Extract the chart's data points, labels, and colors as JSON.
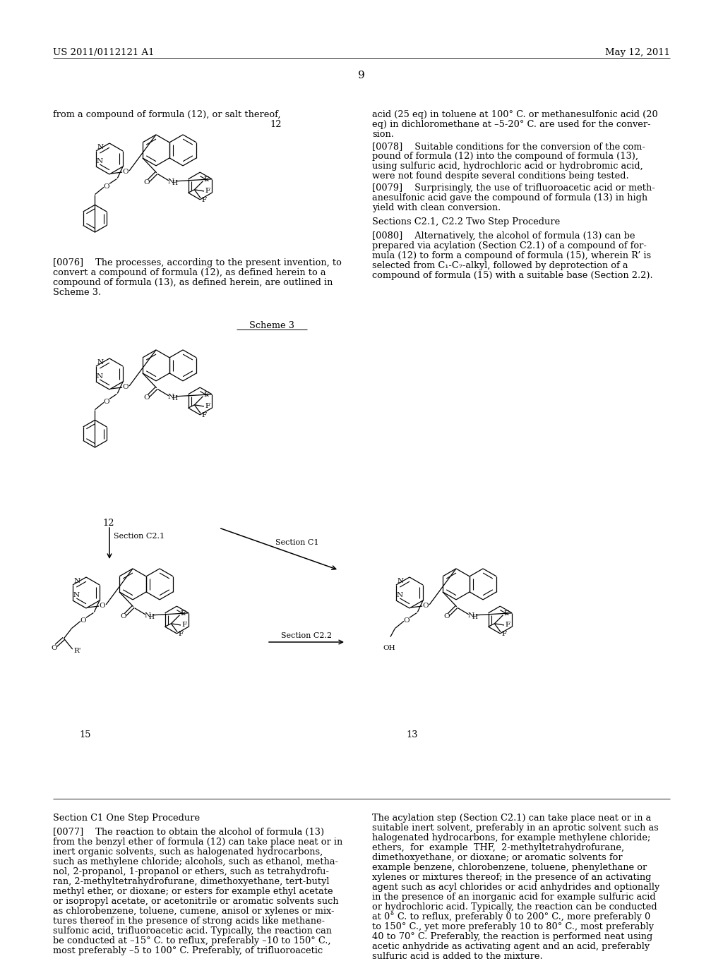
{
  "background": "#ffffff",
  "header_left": "US 2011/0112121 A1",
  "header_right": "May 12, 2011",
  "page_number": "9",
  "scheme_label": "Scheme 3",
  "label_12": "12",
  "label_15": "15",
  "label_13": "13",
  "section_c21": "Section C2.1",
  "section_c1": "Section C1",
  "section_c22": "Section C2.2",
  "left_texts": [
    [
      75,
      156,
      "from a compound of formula (12), or salt thereof,"
    ],
    [
      75,
      366,
      "[0076]  The processes, according to the present invention, to"
    ],
    [
      75,
      380,
      "convert a compound of formula (12), as defined herein to a"
    ],
    [
      75,
      394,
      "compound of formula (13), as defined herein, are outlined in"
    ],
    [
      75,
      408,
      "Scheme 3."
    ]
  ],
  "right_texts": [
    [
      527,
      156,
      "acid (25 eq) in toluene at 100° C. or methanesulfonic acid (20"
    ],
    [
      527,
      170,
      "eq) in dichloromethane at –5-20° C. are used for the conver-"
    ],
    [
      527,
      184,
      "sion."
    ],
    [
      527,
      201,
      "[0078]  Suitable conditions for the conversion of the com-"
    ],
    [
      527,
      215,
      "pound of formula (12) into the compound of formula (13),"
    ],
    [
      527,
      229,
      "using sulfuric acid, hydrochloric acid or hydrobromic acid,"
    ],
    [
      527,
      243,
      "were not found despite several conditions being tested."
    ],
    [
      527,
      260,
      "[0079]  Surprisingly, the use of trifluoroacetic acid or meth-"
    ],
    [
      527,
      274,
      "anesulfonic acid gave the compound of formula (13) in high"
    ],
    [
      527,
      288,
      "yield with clean conversion."
    ],
    [
      527,
      308,
      "Sections C2.1, C2.2 Two Step Procedure"
    ],
    [
      527,
      328,
      "[0080]  Alternatively, the alcohol of formula (13) can be"
    ],
    [
      527,
      342,
      "prepared via acylation (Section C2.1) of a compound of for-"
    ],
    [
      527,
      356,
      "mula (12) to form a compound of formula (15), wherein R’ is"
    ],
    [
      527,
      370,
      "selected from C₁-C₇-alkyl, followed by deprotection of a"
    ],
    [
      527,
      384,
      "compound of formula (15) with a suitable base (Section 2.2)."
    ]
  ],
  "bottom_left_texts": [
    [
      75,
      1153,
      "Section C1 One Step Procedure"
    ],
    [
      75,
      1173,
      "[0077]  The reaction to obtain the alcohol of formula (13)"
    ],
    [
      75,
      1187,
      "from the benzyl ether of formula (12) can take place neat or in"
    ],
    [
      75,
      1201,
      "inert organic solvents, such as halogenated hydrocarbons,"
    ],
    [
      75,
      1215,
      "such as methylene chloride; alcohols, such as ethanol, metha-"
    ],
    [
      75,
      1229,
      "nol, 2-propanol, 1-propanol or ethers, such as tetrahydrofu-"
    ],
    [
      75,
      1243,
      "ran, 2-methyltetrahydrofurane, dimethoxyethane, tert-butyl"
    ],
    [
      75,
      1257,
      "methyl ether, or dioxane; or esters for example ethyl acetate"
    ],
    [
      75,
      1271,
      "or isopropyl acetate, or acetonitrile or aromatic solvents such"
    ],
    [
      75,
      1285,
      "as chlorobenzene, toluene, cumene, anisol or xylenes or mix-"
    ],
    [
      75,
      1299,
      "tures thereof in the presence of strong acids like methane-"
    ],
    [
      75,
      1313,
      "sulfonic acid, trifluoroacetic acid. Typically, the reaction can"
    ],
    [
      75,
      1327,
      "be conducted at –15° C. to reflux, preferably –10 to 150° C.,"
    ],
    [
      75,
      1341,
      "most preferably –5 to 100° C. Preferably, of trifluoroacetic"
    ]
  ],
  "bottom_right_texts": [
    [
      527,
      1153,
      "The acylation step (Section C2.1) can take place neat or in a"
    ],
    [
      527,
      1167,
      "suitable inert solvent, preferably in an aprotic solvent such as"
    ],
    [
      527,
      1181,
      "halogenated hydrocarbons, for example methylene chloride;"
    ],
    [
      527,
      1195,
      "ethers,  for  example  THF,  2-methyltetrahydrofurane,"
    ],
    [
      527,
      1209,
      "dimethoxyethane, or dioxane; or aromatic solvents for"
    ],
    [
      527,
      1223,
      "example benzene, chlorobenzene, toluene, phenylethane or"
    ],
    [
      527,
      1237,
      "xylenes or mixtures thereof; in the presence of an activating"
    ],
    [
      527,
      1251,
      "agent such as acyl chlorides or acid anhydrides and optionally"
    ],
    [
      527,
      1265,
      "in the presence of an inorganic acid for example sulfuric acid"
    ],
    [
      527,
      1279,
      "or hydrochloric acid. Typically, the reaction can be conducted"
    ],
    [
      527,
      1293,
      "at 0° C. to reflux, preferably 0 to 200° C., more preferably 0"
    ],
    [
      527,
      1307,
      "to 150° C., yet more preferably 10 to 80° C., most preferably"
    ],
    [
      527,
      1321,
      "40 to 70° C. Preferably, the reaction is performed neat using"
    ],
    [
      527,
      1335,
      "acetic anhydride as activating agent and an acid, preferably"
    ],
    [
      527,
      1349,
      "sulfuric acid is added to the mixture."
    ]
  ]
}
